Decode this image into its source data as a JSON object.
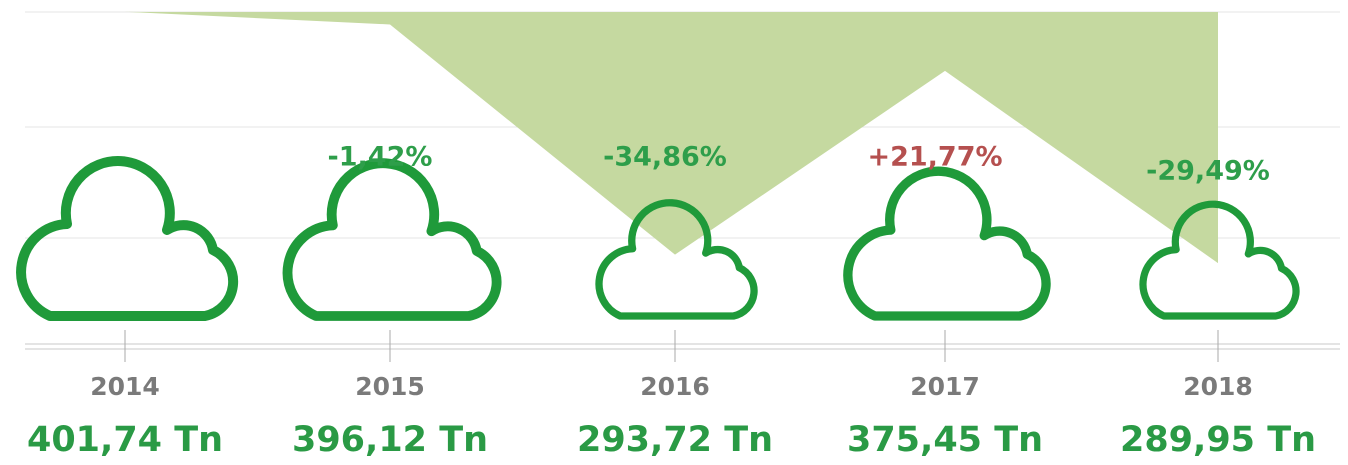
{
  "chart_data": {
    "type": "area",
    "categories": [
      "2014",
      "2015",
      "2016",
      "2017",
      "2018"
    ],
    "values": [
      401.74,
      396.12,
      293.72,
      375.45,
      289.95
    ],
    "value_labels": [
      "401,74 Tn",
      "396,12 Tn",
      "293,72 Tn",
      "375,45 Tn",
      "289,95 Tn"
    ],
    "changes": [
      null,
      -1.42,
      -34.86,
      21.77,
      -29.49
    ],
    "change_labels": [
      null,
      "-1,42%",
      "-34,86%",
      "+21,77%",
      "-29,49%"
    ],
    "change_colors": [
      null,
      "#2e9e4a",
      "#2e9e4a",
      "#b5504f",
      "#2e9e4a"
    ],
    "color": "#c5d9a0",
    "cloud_color": "#1f9a3a",
    "label_color": "#2a9a45",
    "ylim": [
      407,
      290
    ]
  }
}
